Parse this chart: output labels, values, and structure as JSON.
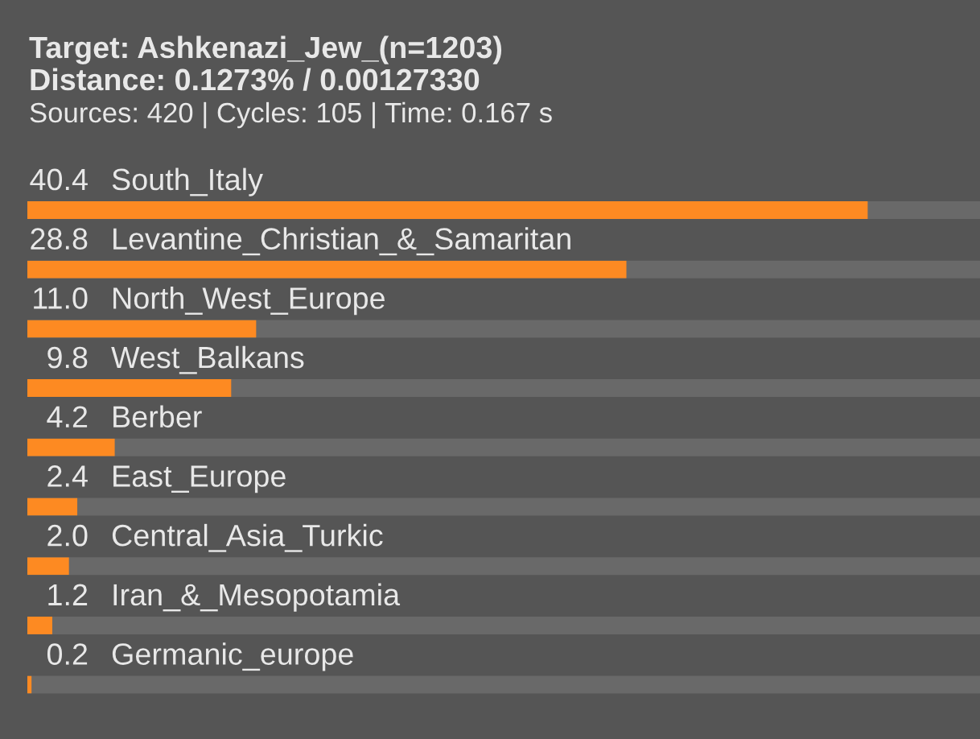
{
  "chart_data": {
    "type": "bar",
    "orientation": "horizontal",
    "title": "Target: Ashkenazi_Jew_(n=1203)",
    "subtitle": "Distance: 0.1273% / 0.00127330",
    "annotations": [
      "Sources: 420 | Cycles: 105 | Time: 0.167 s"
    ],
    "categories": [
      "South_Italy",
      "Levantine_Christian_&_Samaritan",
      "North_West_Europe",
      "West_Balkans",
      "Berber",
      "East_Europe",
      "Central_Asia_Turkic",
      "Iran_&_Mesopotamia",
      "Germanic_europe"
    ],
    "values": [
      40.4,
      28.8,
      11.0,
      9.8,
      4.2,
      2.4,
      2.0,
      1.2,
      0.2
    ],
    "value_labels": [
      "40.4",
      "28.8",
      "11.0",
      "9.8",
      "4.2",
      "2.4",
      "2.0",
      "1.2",
      "0.2"
    ],
    "color": "#fd8a22",
    "xlim": [
      0,
      45.8
    ]
  }
}
